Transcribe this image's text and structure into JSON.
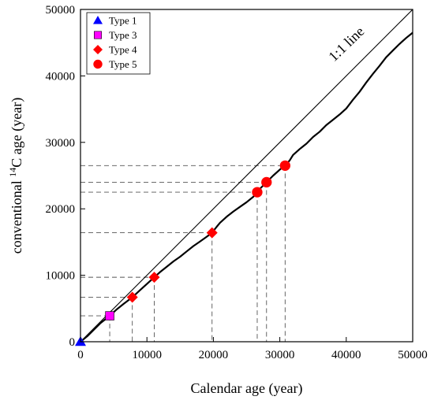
{
  "chart_data": {
    "type": "scatter",
    "xlabel": "Calendar age (year)",
    "ylabel_parts": {
      "prefix": "conventional ",
      "sup": "14",
      "suffix": "C age (year)"
    },
    "xlim": [
      0,
      50000
    ],
    "ylim": [
      0,
      50000
    ],
    "x_ticks": [
      "0",
      "10000",
      "20000",
      "30000",
      "40000",
      "50000"
    ],
    "y_ticks": [
      "0",
      "10000",
      "20000",
      "30000",
      "40000",
      "50000"
    ],
    "grid": false,
    "legend_position": "top-left",
    "annotations": [
      {
        "text": "1:1 line",
        "x": 40500,
        "y": 44300,
        "rotation_deg": -44
      }
    ],
    "identity_line": {
      "x": [
        0,
        50000
      ],
      "y": [
        0,
        50000
      ]
    },
    "calibration_curve": {
      "x": [
        0,
        1000,
        2000,
        3000,
        4400,
        5500,
        6500,
        7800,
        9000,
        10000,
        11100,
        12000,
        13000,
        14000,
        15000,
        16000,
        17000,
        18000,
        19000,
        19800,
        20500,
        21000,
        22000,
        23000,
        24000,
        25000,
        26000,
        26600,
        27000,
        28000,
        29000,
        30000,
        30800,
        31500,
        32000,
        33000,
        34000,
        35000,
        36000,
        37000,
        38000,
        39000,
        40000,
        41000,
        42000,
        43000,
        44000,
        45000,
        46000,
        47000,
        48000,
        49000,
        50000
      ],
      "y": [
        0,
        800,
        1800,
        2800,
        3900,
        4900,
        5700,
        6700,
        7800,
        8700,
        9700,
        10500,
        11300,
        12100,
        12800,
        13600,
        14400,
        15100,
        15800,
        16400,
        17300,
        17900,
        18800,
        19600,
        20300,
        21000,
        21800,
        22500,
        23000,
        24000,
        25000,
        25900,
        26500,
        27300,
        28100,
        29000,
        29800,
        30800,
        31600,
        32600,
        33400,
        34200,
        35100,
        36400,
        37600,
        39000,
        40300,
        41500,
        42800,
        43800,
        44800,
        45700,
        46500
      ]
    },
    "series": [
      {
        "name": "Type 1",
        "marker": "triangle",
        "color": "#0000ff",
        "points": [
          {
            "x": 0,
            "y": 0
          }
        ]
      },
      {
        "name": "Type 3",
        "marker": "square",
        "color": "#ff00ff",
        "points": [
          {
            "x": 4400,
            "y": 3900
          }
        ]
      },
      {
        "name": "Type 4",
        "marker": "diamond",
        "color": "#ff0000",
        "points": [
          {
            "x": 7800,
            "y": 6700
          },
          {
            "x": 11100,
            "y": 9700
          },
          {
            "x": 19800,
            "y": 16400
          }
        ]
      },
      {
        "name": "Type 5",
        "marker": "circle",
        "color": "#ff0000",
        "points": [
          {
            "x": 26600,
            "y": 22500
          },
          {
            "x": 28000,
            "y": 24000
          },
          {
            "x": 30800,
            "y": 26500
          }
        ]
      }
    ]
  }
}
